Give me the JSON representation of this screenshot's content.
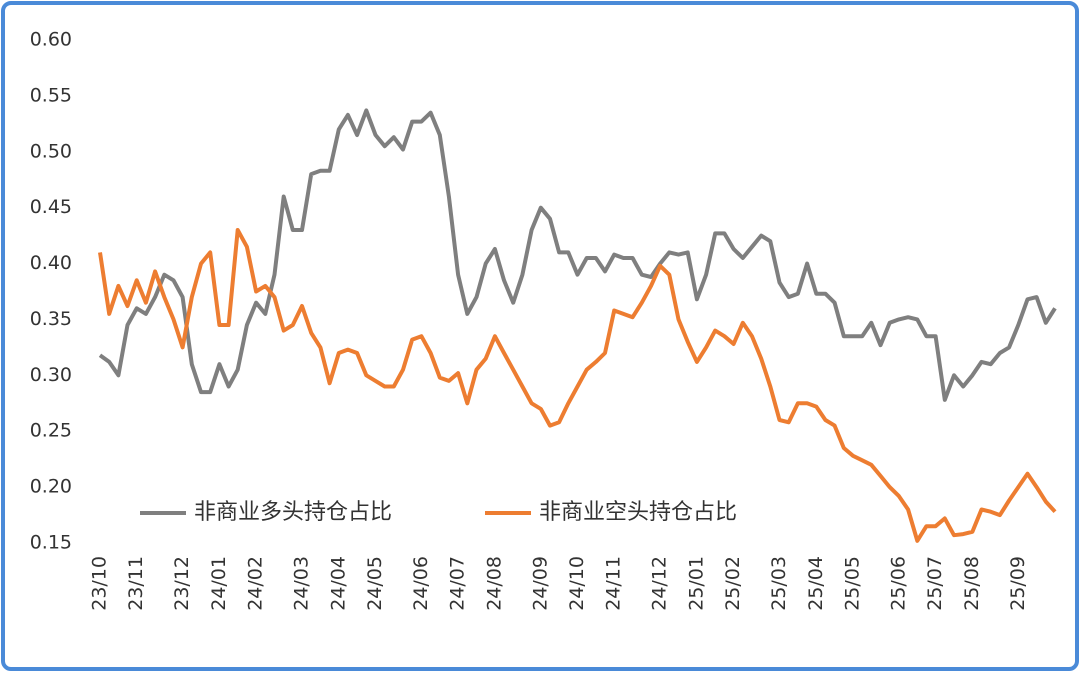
{
  "chart_data": {
    "type": "line",
    "categories": [
      "23/10",
      null,
      null,
      null,
      "23/11",
      null,
      null,
      null,
      null,
      "23/12",
      null,
      null,
      null,
      "24/01",
      null,
      null,
      null,
      "24/02",
      null,
      null,
      null,
      null,
      "24/03",
      null,
      null,
      null,
      "24/04",
      null,
      null,
      null,
      "24/05",
      null,
      null,
      null,
      null,
      "24/06",
      null,
      null,
      null,
      "24/07",
      null,
      null,
      null,
      "24/08",
      null,
      null,
      null,
      null,
      "24/09",
      null,
      null,
      null,
      "24/10",
      null,
      null,
      null,
      "24/11",
      null,
      null,
      null,
      null,
      "24/12",
      null,
      null,
      null,
      "25/01",
      null,
      null,
      null,
      "25/02",
      null,
      null,
      null,
      null,
      "25/03",
      null,
      null,
      null,
      "25/04",
      null,
      null,
      null,
      "25/05",
      null,
      null,
      null,
      null,
      "25/06",
      null,
      null,
      null,
      "25/07",
      null,
      null,
      null,
      "25/08",
      null,
      null,
      null,
      null,
      "25/09",
      null,
      null,
      null,
      null
    ],
    "series": [
      {
        "name": "非商业多头持仓占比",
        "color": "#7f7f7f",
        "values": [
          0.318,
          0.312,
          0.3,
          0.345,
          0.36,
          0.355,
          0.37,
          0.39,
          0.385,
          0.37,
          0.31,
          0.285,
          0.285,
          0.31,
          0.29,
          0.305,
          0.345,
          0.365,
          0.355,
          0.39,
          0.46,
          0.43,
          0.43,
          0.48,
          0.483,
          0.483,
          0.52,
          0.533,
          0.515,
          0.537,
          0.515,
          0.505,
          0.513,
          0.502,
          0.527,
          0.527,
          0.535,
          0.515,
          0.46,
          0.39,
          0.355,
          0.37,
          0.4,
          0.413,
          0.385,
          0.365,
          0.39,
          0.43,
          0.45,
          0.44,
          0.41,
          0.41,
          0.39,
          0.405,
          0.405,
          0.393,
          0.408,
          0.405,
          0.405,
          0.39,
          0.388,
          0.4,
          0.41,
          0.408,
          0.41,
          0.368,
          0.39,
          0.427,
          0.427,
          0.413,
          0.405,
          0.415,
          0.425,
          0.42,
          0.383,
          0.37,
          0.373,
          0.4,
          0.373,
          0.373,
          0.365,
          0.335,
          0.335,
          0.335,
          0.347,
          0.327,
          0.347,
          0.35,
          0.352,
          0.35,
          0.335,
          0.335,
          0.278,
          0.3,
          0.29,
          0.3,
          0.312,
          0.31,
          0.32,
          0.325,
          0.345,
          0.368,
          0.37,
          0.347,
          0.36
        ]
      },
      {
        "name": "非商业空头持仓占比",
        "color": "#ed7d31",
        "values": [
          0.41,
          0.355,
          0.38,
          0.362,
          0.385,
          0.365,
          0.393,
          0.37,
          0.35,
          0.325,
          0.37,
          0.4,
          0.41,
          0.345,
          0.345,
          0.43,
          0.415,
          0.375,
          0.38,
          0.37,
          0.34,
          0.345,
          0.362,
          0.338,
          0.325,
          0.293,
          0.32,
          0.323,
          0.32,
          0.3,
          0.295,
          0.29,
          0.29,
          0.305,
          0.332,
          0.335,
          0.32,
          0.298,
          0.295,
          0.302,
          0.275,
          0.305,
          0.315,
          0.335,
          0.32,
          0.305,
          0.29,
          0.275,
          0.27,
          0.255,
          0.258,
          0.275,
          0.29,
          0.305,
          0.312,
          0.32,
          0.358,
          0.355,
          0.352,
          0.365,
          0.38,
          0.398,
          0.39,
          0.35,
          0.33,
          0.312,
          0.325,
          0.34,
          0.335,
          0.328,
          0.347,
          0.335,
          0.315,
          0.29,
          0.26,
          0.258,
          0.275,
          0.275,
          0.272,
          0.26,
          0.255,
          0.235,
          0.228,
          0.224,
          0.22,
          0.21,
          0.2,
          0.192,
          0.18,
          0.152,
          0.165,
          0.165,
          0.172,
          0.157,
          0.158,
          0.16,
          0.18,
          0.178,
          0.175,
          0.188,
          0.2,
          0.212,
          0.2,
          0.187,
          0.178
        ]
      }
    ],
    "ylim": [
      0.15,
      0.6
    ],
    "yticks": [
      0.15,
      {
        "value": 0.2,
        "label": "0.20"
      },
      0.25,
      {
        "value": 0.3,
        "label": "0.30"
      },
      0.35,
      {
        "value": 0.4,
        "label": "0.40"
      },
      0.45,
      {
        "value": 0.5,
        "label": "0.50"
      },
      0.55,
      {
        "value": 0.6,
        "label": "0.60"
      }
    ],
    "legend": "bottom-left",
    "grid": false
  }
}
